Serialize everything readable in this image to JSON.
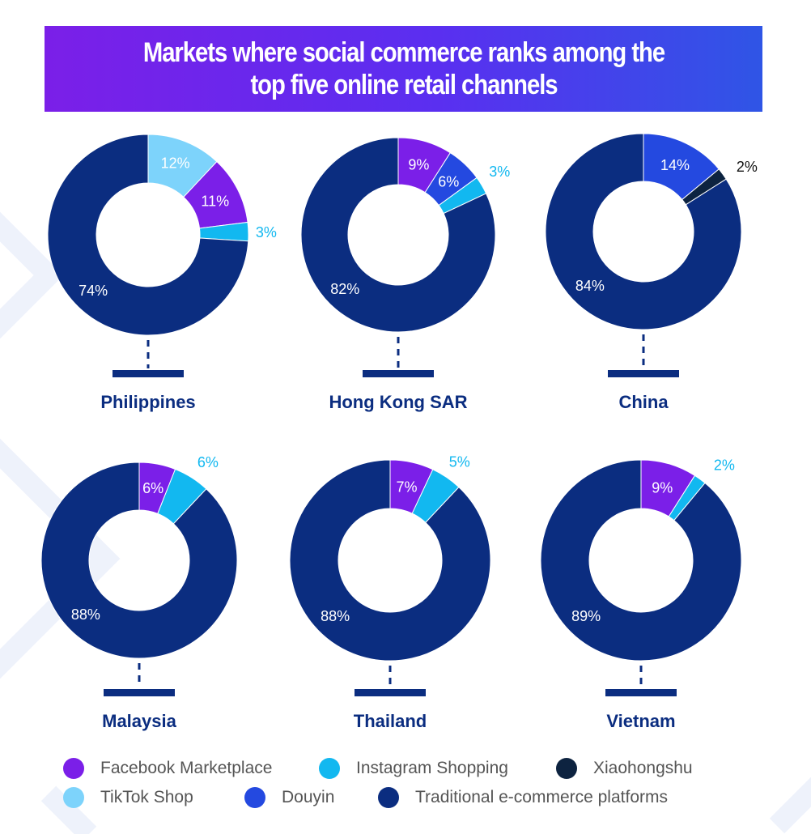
{
  "title": "Markets where social commerce ranks among the top five online retail channels",
  "colors": {
    "facebook": "#7b1fe8",
    "instagram": "#12b8f0",
    "xiaohongshu": "#0d2340",
    "tiktok": "#7dd3fb",
    "douyin": "#2449e0",
    "traditional": "#0b2d80",
    "label_on_dark": "#ffffff",
    "label_instagram": "#12b8f0",
    "label_xiaohongshu": "#111111",
    "country_text": "#0b2d80"
  },
  "legend": [
    {
      "key": "facebook",
      "label": "Facebook Marketplace"
    },
    {
      "key": "instagram",
      "label": "Instagram Shopping"
    },
    {
      "key": "xiaohongshu",
      "label": "Xiaohongshu"
    },
    {
      "key": "tiktok",
      "label": "TikTok Shop"
    },
    {
      "key": "douyin",
      "label": "Douyin"
    },
    {
      "key": "traditional",
      "label": "Traditional e-commerce platforms"
    }
  ],
  "chart_data": [
    {
      "type": "pie",
      "title": "Philippines",
      "slices": [
        {
          "key": "tiktok",
          "value": 12,
          "label": "12%"
        },
        {
          "key": "facebook",
          "value": 11,
          "label": "11%"
        },
        {
          "key": "instagram",
          "value": 3,
          "label": "3%"
        },
        {
          "key": "traditional",
          "value": 74,
          "label": "74%"
        }
      ]
    },
    {
      "type": "pie",
      "title": "Hong Kong SAR",
      "slices": [
        {
          "key": "facebook",
          "value": 9,
          "label": "9%"
        },
        {
          "key": "douyin",
          "value": 6,
          "label": "6%"
        },
        {
          "key": "instagram",
          "value": 3,
          "label": "3%"
        },
        {
          "key": "traditional",
          "value": 82,
          "label": "82%"
        }
      ]
    },
    {
      "type": "pie",
      "title": "China",
      "slices": [
        {
          "key": "douyin",
          "value": 14,
          "label": "14%"
        },
        {
          "key": "xiaohongshu",
          "value": 2,
          "label": "2%"
        },
        {
          "key": "traditional",
          "value": 84,
          "label": "84%"
        }
      ]
    },
    {
      "type": "pie",
      "title": "Malaysia",
      "slices": [
        {
          "key": "facebook",
          "value": 6,
          "label": "6%"
        },
        {
          "key": "instagram",
          "value": 6,
          "label": "6%"
        },
        {
          "key": "traditional",
          "value": 88,
          "label": "88%"
        }
      ]
    },
    {
      "type": "pie",
      "title": "Thailand",
      "slices": [
        {
          "key": "facebook",
          "value": 7,
          "label": "7%"
        },
        {
          "key": "instagram",
          "value": 5,
          "label": "5%"
        },
        {
          "key": "traditional",
          "value": 88,
          "label": "88%"
        }
      ]
    },
    {
      "type": "pie",
      "title": "Vietnam",
      "slices": [
        {
          "key": "facebook",
          "value": 9,
          "label": "9%"
        },
        {
          "key": "instagram",
          "value": 2,
          "label": "2%"
        },
        {
          "key": "traditional",
          "value": 89,
          "label": "89%"
        }
      ]
    }
  ]
}
